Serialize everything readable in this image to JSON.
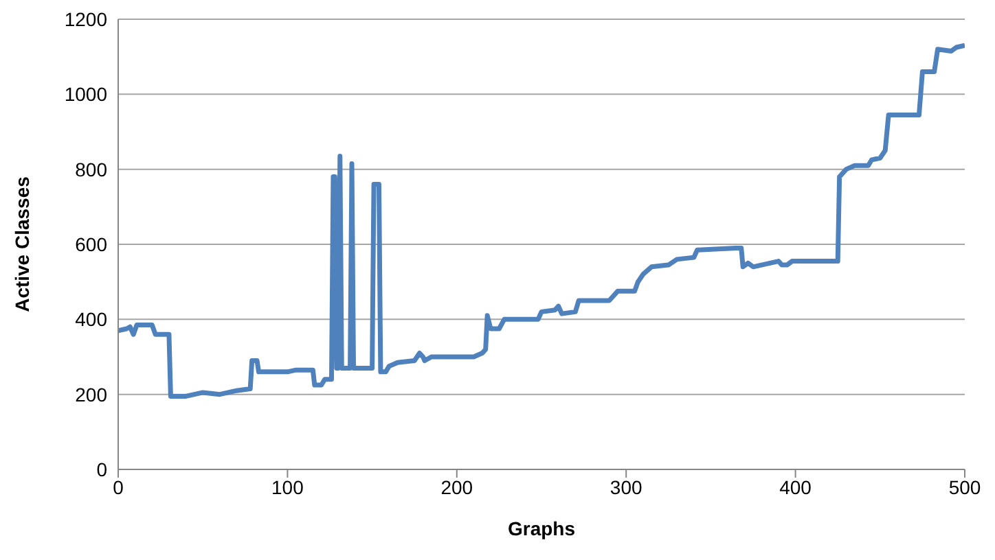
{
  "chart_data": {
    "type": "line",
    "xlabel": "Graphs",
    "ylabel": "Active Classes",
    "xlim": [
      0,
      500
    ],
    "xticks": [
      0,
      100,
      200,
      300,
      400,
      500
    ],
    "ylim": [
      0,
      1200
    ],
    "yticks": [
      0,
      200,
      400,
      600,
      800,
      1000,
      1200
    ],
    "grid": "y",
    "marker": "none",
    "line_style": "solid",
    "series": [
      {
        "color": "#4f81bd",
        "x": [
          0,
          5,
          7,
          9,
          11,
          20,
          22,
          30,
          31,
          40,
          50,
          60,
          70,
          78,
          79,
          82,
          83,
          100,
          105,
          115,
          116,
          120,
          122,
          126,
          127,
          128,
          129,
          130,
          131,
          132,
          135,
          137,
          138,
          139,
          150,
          151,
          154,
          155,
          158,
          160,
          165,
          175,
          178,
          180,
          181,
          185,
          210,
          215,
          217,
          218,
          220,
          225,
          228,
          248,
          250,
          258,
          260,
          262,
          270,
          272,
          290,
          295,
          305,
          307,
          310,
          315,
          325,
          330,
          340,
          342,
          365,
          368,
          369,
          372,
          375,
          385,
          390,
          392,
          395,
          398,
          425,
          426,
          430,
          435,
          443,
          445,
          450,
          453,
          455,
          473,
          475,
          482,
          484,
          492,
          495,
          500
        ],
        "values": [
          370,
          375,
          380,
          360,
          385,
          385,
          360,
          360,
          195,
          195,
          205,
          200,
          210,
          215,
          290,
          290,
          260,
          260,
          265,
          265,
          225,
          225,
          240,
          240,
          780,
          780,
          270,
          270,
          835,
          270,
          270,
          270,
          815,
          270,
          270,
          760,
          760,
          260,
          260,
          275,
          285,
          290,
          310,
          300,
          290,
          300,
          300,
          310,
          320,
          410,
          375,
          375,
          400,
          400,
          420,
          425,
          435,
          415,
          420,
          450,
          450,
          475,
          475,
          500,
          520,
          540,
          545,
          560,
          565,
          585,
          590,
          590,
          540,
          550,
          540,
          550,
          555,
          545,
          545,
          555,
          555,
          780,
          800,
          810,
          810,
          825,
          830,
          850,
          945,
          945,
          1060,
          1060,
          1120,
          1115,
          1125,
          1130
        ]
      }
    ]
  }
}
